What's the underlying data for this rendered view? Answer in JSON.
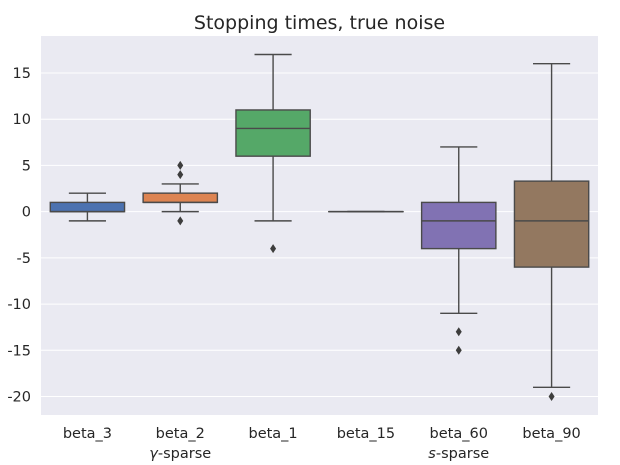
{
  "chart_data": {
    "type": "box",
    "title": "Stopping times, true noise",
    "xlabel": "",
    "ylabel": "",
    "ylim": [
      -22,
      19
    ],
    "yticks": [
      15,
      10,
      5,
      0,
      -5,
      -10,
      -15,
      -20
    ],
    "grid": true,
    "groups": [
      {
        "label": "γ-sparse",
        "categories": [
          "beta_3",
          "beta_2",
          "beta_1"
        ]
      },
      {
        "label": "s-sparse",
        "categories": [
          "beta_15",
          "beta_60",
          "beta_90"
        ]
      }
    ],
    "boxes": [
      {
        "category": "beta_3",
        "color": "#4c72b0",
        "whisker_low": -1,
        "q1": 0,
        "median": 0,
        "q3": 1,
        "whisker_high": 2,
        "outliers": []
      },
      {
        "category": "beta_2",
        "color": "#dd8452",
        "whisker_low": 0,
        "q1": 1,
        "median": 1,
        "q3": 2,
        "whisker_high": 3,
        "outliers": [
          5,
          4,
          -1
        ]
      },
      {
        "category": "beta_1",
        "color": "#55a868",
        "whisker_low": -1,
        "q1": 6,
        "median": 9,
        "q3": 11,
        "whisker_high": 17,
        "outliers": [
          -4
        ]
      },
      {
        "category": "beta_15",
        "color": "#c44e52",
        "whisker_low": 0,
        "q1": 0,
        "median": 0,
        "q3": 0,
        "whisker_high": 0,
        "outliers": []
      },
      {
        "category": "beta_60",
        "color": "#8172b3",
        "whisker_low": -11,
        "q1": -4,
        "median": -1,
        "q3": 1,
        "whisker_high": 7,
        "outliers": [
          -13,
          -15
        ]
      },
      {
        "category": "beta_90",
        "color": "#937860",
        "whisker_low": -19,
        "q1": -6,
        "median": -1,
        "q3": 3.3,
        "whisker_high": 16,
        "outliers": [
          -20
        ]
      }
    ]
  }
}
